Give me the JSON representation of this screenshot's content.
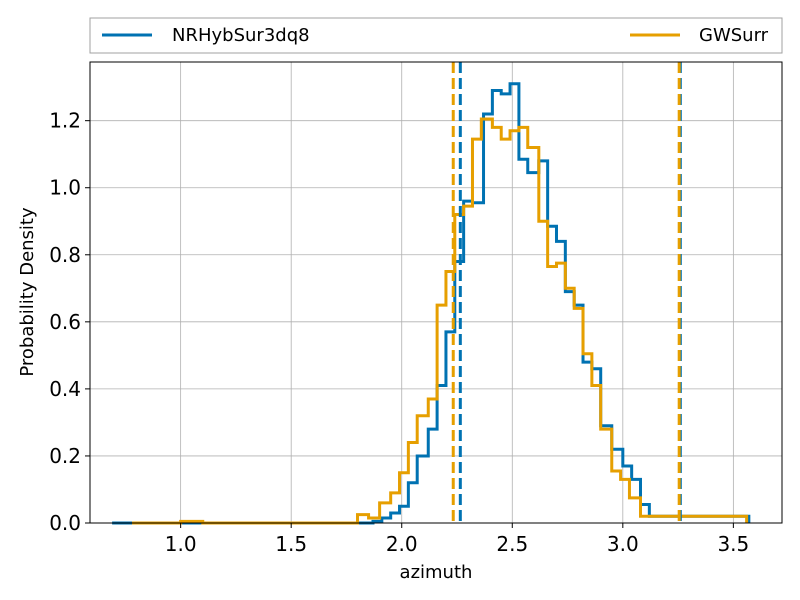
{
  "chart_data": {
    "type": "histogram",
    "xlabel": "azimuth",
    "ylabel": "Probability Density",
    "xlim": [
      0.59,
      3.72
    ],
    "ylim": [
      0,
      1.375
    ],
    "xticks": [
      1.0,
      1.5,
      2.0,
      2.5,
      3.0,
      3.5
    ],
    "xtick_labels": [
      "1.0",
      "1.5",
      "2.0",
      "2.5",
      "3.0",
      "3.5"
    ],
    "yticks": [
      0.0,
      0.2,
      0.4,
      0.6,
      0.8,
      1.0,
      1.2
    ],
    "ytick_labels": [
      "0.0",
      "0.2",
      "0.4",
      "0.6",
      "0.8",
      "1.0",
      "1.2"
    ],
    "grid": true,
    "legend_placement": "top, above plot, full width",
    "series": [
      {
        "name": "NRHybSur3dq8",
        "color": "#0072B2",
        "bin_edges": [
          0.69,
          0.8,
          0.9,
          1.0,
          1.1,
          1.2,
          1.3,
          1.4,
          1.5,
          1.6,
          1.7,
          1.8,
          1.87,
          1.91,
          1.95,
          1.99,
          2.03,
          2.07,
          2.12,
          2.16,
          2.2,
          2.24,
          2.28,
          2.32,
          2.37,
          2.41,
          2.45,
          2.49,
          2.53,
          2.57,
          2.62,
          2.66,
          2.7,
          2.74,
          2.78,
          2.82,
          2.86,
          2.9,
          2.95,
          3.0,
          3.04,
          3.08,
          3.12,
          3.16,
          3.2,
          3.25,
          3.29,
          3.33,
          3.37,
          3.41,
          3.45,
          3.49,
          3.54,
          3.57
        ],
        "density": [
          0.0,
          0.0,
          0.0,
          0.0,
          0.0,
          0.0,
          0.0,
          0.0,
          0.0,
          0.0,
          0.0,
          0.0,
          0.005,
          0.015,
          0.03,
          0.05,
          0.12,
          0.2,
          0.28,
          0.41,
          0.57,
          0.78,
          0.96,
          0.955,
          1.22,
          1.29,
          1.28,
          1.31,
          1.085,
          1.045,
          1.08,
          0.885,
          0.84,
          0.69,
          0.65,
          0.48,
          0.46,
          0.29,
          0.22,
          0.17,
          0.13,
          0.055,
          0.02,
          0.02,
          0.02,
          0.02,
          0.02,
          0.02,
          0.02,
          0.02,
          0.02,
          0.02,
          0.02
        ]
      },
      {
        "name": "GWSurr",
        "color": "#E69F00",
        "bin_edges": [
          0.78,
          0.9,
          1.0,
          1.1,
          1.2,
          1.3,
          1.4,
          1.5,
          1.6,
          1.7,
          1.8,
          1.85,
          1.9,
          1.95,
          1.99,
          2.03,
          2.07,
          2.12,
          2.16,
          2.2,
          2.24,
          2.28,
          2.32,
          2.36,
          2.41,
          2.45,
          2.49,
          2.53,
          2.57,
          2.62,
          2.66,
          2.7,
          2.74,
          2.78,
          2.82,
          2.86,
          2.9,
          2.95,
          2.99,
          3.03,
          3.08,
          3.12,
          3.16,
          3.2,
          3.25,
          3.29,
          3.33,
          3.37,
          3.41,
          3.45,
          3.49,
          3.53,
          3.56
        ],
        "density": [
          0.0,
          0.0,
          0.005,
          0.0,
          0.0,
          0.0,
          0.0,
          0.0,
          0.0,
          0.0,
          0.025,
          0.015,
          0.06,
          0.09,
          0.15,
          0.24,
          0.32,
          0.37,
          0.65,
          0.75,
          0.92,
          0.945,
          1.145,
          1.205,
          1.18,
          1.145,
          1.17,
          1.18,
          1.12,
          0.9,
          0.765,
          0.775,
          0.7,
          0.64,
          0.505,
          0.41,
          0.28,
          0.155,
          0.13,
          0.075,
          0.02,
          0.02,
          0.02,
          0.02,
          0.02,
          0.02,
          0.02,
          0.02,
          0.02,
          0.02,
          0.02,
          0.02
        ]
      }
    ],
    "vlines": [
      {
        "series": "NRHybSur3dq8",
        "x": 2.265,
        "color": "#0072B2",
        "style": "dashed"
      },
      {
        "series": "NRHybSur3dq8",
        "x": 3.26,
        "color": "#0072B2",
        "style": "dashed"
      },
      {
        "series": "GWSurr",
        "x": 2.233,
        "color": "#E69F00",
        "style": "dashed"
      },
      {
        "series": "GWSurr",
        "x": 3.255,
        "color": "#E69F00",
        "style": "dashed"
      }
    ]
  }
}
